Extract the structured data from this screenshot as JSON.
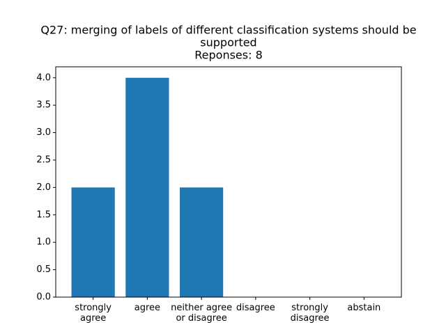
{
  "chart_data": {
    "type": "bar",
    "title": [
      "Q27: merging of labels of different classification systems should be",
      "supported",
      "Reponses: 8"
    ],
    "categories": [
      "strongly\nagree",
      "agree",
      "neither agree\nor disagree",
      "disagree",
      "strongly\ndisagree",
      "abstain"
    ],
    "values": [
      2,
      4,
      2,
      0,
      0,
      0
    ],
    "color": "#1f77b4",
    "ylim": [
      0,
      4.2
    ],
    "yticks": [
      {
        "value": 0,
        "label": "0.0"
      },
      {
        "value": 0.5,
        "label": "0.5"
      },
      {
        "value": 1,
        "label": "1.0"
      },
      {
        "value": 1.5,
        "label": "1.5"
      },
      {
        "value": 2,
        "label": "2.0"
      },
      {
        "value": 2.5,
        "label": "2.5"
      },
      {
        "value": 3,
        "label": "3.0"
      },
      {
        "value": 3.5,
        "label": "3.5"
      },
      {
        "value": 4,
        "label": "4.0"
      }
    ]
  }
}
